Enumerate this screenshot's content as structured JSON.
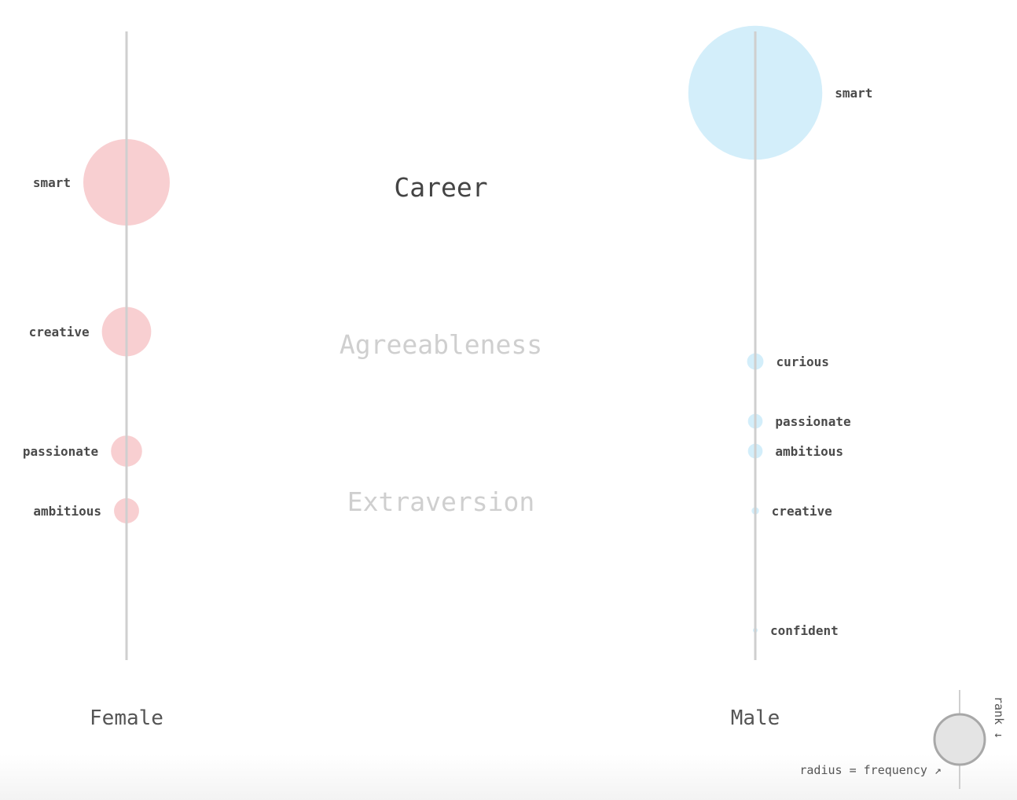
{
  "chart_data": {
    "type": "bubble-rank",
    "categories": [
      "Career",
      "Agreeableness",
      "Extraversion"
    ],
    "selected_category": "Career",
    "series": [
      {
        "name": "Female",
        "color": "#f3a7ab",
        "items": [
          {
            "label": "smart",
            "rank": 2.0,
            "frequency": 1.0
          },
          {
            "label": "creative",
            "rank": 4.5,
            "frequency": 0.57
          },
          {
            "label": "passionate",
            "rank": 6.5,
            "frequency": 0.36
          },
          {
            "label": "ambitious",
            "rank": 7.5,
            "frequency": 0.29
          }
        ]
      },
      {
        "name": "Male",
        "color": "#aee0f5",
        "items": [
          {
            "label": "smart",
            "rank": 0.5,
            "frequency": 1.55
          },
          {
            "label": "curious",
            "rank": 5.0,
            "frequency": 0.19
          },
          {
            "label": "passionate",
            "rank": 6.0,
            "frequency": 0.17
          },
          {
            "label": "ambitious",
            "rank": 6.5,
            "frequency": 0.17
          },
          {
            "label": "creative",
            "rank": 7.5,
            "frequency": 0.085
          },
          {
            "label": "confident",
            "rank": 9.5,
            "frequency": 0.055
          }
        ]
      }
    ],
    "legend": {
      "size_text": "radius = frequency ↗",
      "rank_text": "rank ↓"
    }
  }
}
